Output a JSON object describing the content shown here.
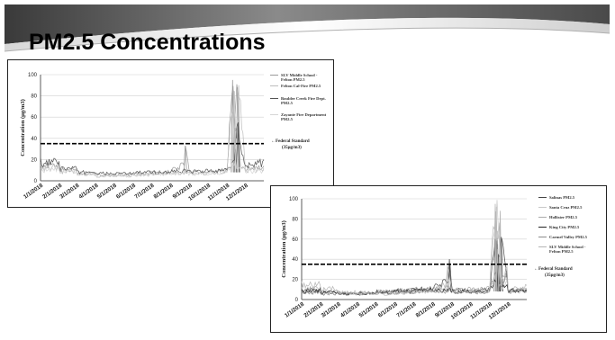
{
  "slide": {
    "title": "PM2.5 Concentrations"
  },
  "colors": {
    "accent": "#cc3b2e",
    "frame": "#222222",
    "standard_line": "#000000"
  },
  "chart_data": [
    {
      "type": "line",
      "title": "",
      "xlabel": "",
      "ylabel": "Concentration (µg/m3)",
      "ylim": [
        0,
        100
      ],
      "yticks": [
        "0",
        "20",
        "40",
        "60",
        "80",
        "100"
      ],
      "xticks": [
        "1/1/2018",
        "2/1/2018",
        "3/1/2018",
        "4/1/2018",
        "5/1/2018",
        "6/1/2018",
        "7/1/2018",
        "8/1/2018",
        "9/1/2018",
        "10/1/2018",
        "11/1/2018",
        "12/1/2018"
      ],
      "legend_position": "right",
      "standard": {
        "value": 35,
        "label": "←Federal Standard",
        "sublabel": "(35µg/m3)"
      },
      "series": [
        {
          "name": "SLV Middle School - Felton PM2.5",
          "color": "#9a9a9a",
          "x": [
            "1/1/2018",
            "2/1/2018",
            "3/1/2018",
            "4/1/2018",
            "5/1/2018",
            "6/1/2018",
            "7/1/2018",
            "8/1/2018",
            "8/25/2018",
            "9/1/2018",
            "10/1/2018",
            "11/1/2018",
            "11/10/2018",
            "11/14/2018",
            "11/18/2018",
            "11/22/2018",
            "12/1/2018",
            "12/31/2018"
          ],
          "values": [
            18,
            12,
            9,
            6,
            5,
            6,
            7,
            8,
            33,
            7,
            8,
            10,
            95,
            50,
            88,
            12,
            10,
            14
          ]
        },
        {
          "name": "Felton Cal-Fire PM2.5",
          "color": "#bdbdbd",
          "x": [
            "1/1/2018",
            "2/1/2018",
            "3/1/2018",
            "4/1/2018",
            "5/1/2018",
            "6/1/2018",
            "7/1/2018",
            "8/1/2018",
            "9/1/2018",
            "10/1/2018",
            "11/1/2018",
            "11/12/2018",
            "11/16/2018",
            "11/20/2018",
            "12/1/2018",
            "12/31/2018"
          ],
          "values": [
            15,
            10,
            8,
            5,
            4,
            5,
            6,
            7,
            6,
            7,
            9,
            85,
            30,
            90,
            9,
            12
          ]
        },
        {
          "name": "Boulder Creek Fire Dept. PM2.5",
          "color": "#555555",
          "x": [
            "1/1/2018",
            "2/1/2018",
            "3/1/2018",
            "4/1/2018",
            "5/1/2018",
            "6/1/2018",
            "7/1/2018",
            "8/1/2018",
            "9/1/2018",
            "10/1/2018",
            "11/1/2018",
            "11/15/2018",
            "11/19/2018",
            "11/25/2018",
            "12/1/2018",
            "12/31/2018"
          ],
          "values": [
            22,
            14,
            10,
            7,
            6,
            7,
            7,
            8,
            9,
            8,
            10,
            30,
            55,
            25,
            14,
            20
          ]
        },
        {
          "name": "Zayante Fire Department PM2.5",
          "color": "#d6d6d6",
          "x": [
            "1/1/2018",
            "2/1/2018",
            "3/1/2018",
            "4/1/2018",
            "5/1/2018",
            "6/1/2018",
            "7/1/2018",
            "8/1/2018",
            "9/1/2018",
            "10/1/2018",
            "11/1/2018",
            "11/16/2018",
            "12/1/2018",
            "12/31/2018"
          ],
          "values": [
            12,
            9,
            7,
            5,
            4,
            5,
            5,
            6,
            6,
            6,
            8,
            40,
            8,
            10
          ]
        }
      ]
    },
    {
      "type": "line",
      "title": "",
      "xlabel": "",
      "ylabel": "Concentration (µg/m3)",
      "ylim": [
        0,
        100
      ],
      "yticks": [
        "0",
        "20",
        "40",
        "60",
        "80",
        "100"
      ],
      "xticks": [
        "1/1/2018",
        "2/1/2018",
        "3/1/2018",
        "4/1/2018",
        "5/1/2018",
        "6/1/2018",
        "7/1/2018",
        "8/1/2018",
        "9/1/2018",
        "10/1/2018",
        "11/1/2018",
        "12/1/2018"
      ],
      "legend_position": "right",
      "standard": {
        "value": 35,
        "label": "←Federal Standard",
        "sublabel": "(35µg/m3)"
      },
      "series": [
        {
          "name": "Salinas PM2.5",
          "color": "#444444",
          "x": [
            "1/1/2018",
            "2/1/2018",
            "3/1/2018",
            "4/1/2018",
            "5/1/2018",
            "6/1/2018",
            "7/1/2018",
            "8/1/2018",
            "8/28/2018",
            "9/1/2018",
            "10/1/2018",
            "11/1/2018",
            "11/10/2018",
            "11/16/2018",
            "11/20/2018",
            "12/1/2018",
            "12/31/2018"
          ],
          "values": [
            10,
            8,
            6,
            6,
            7,
            8,
            9,
            10,
            40,
            9,
            8,
            10,
            60,
            30,
            62,
            8,
            10
          ]
        },
        {
          "name": "Santa Cruz PM2.5",
          "color": "#c8c8c8",
          "x": [
            "1/1/2018",
            "2/1/2018",
            "3/1/2018",
            "4/1/2018",
            "5/1/2018",
            "6/1/2018",
            "7/1/2018",
            "8/1/2018",
            "9/1/2018",
            "10/1/2018",
            "11/1/2018",
            "11/12/2018",
            "11/18/2018",
            "12/1/2018",
            "12/31/2018"
          ],
          "values": [
            8,
            6,
            5,
            5,
            6,
            6,
            7,
            8,
            9,
            7,
            9,
            92,
            40,
            7,
            8
          ]
        },
        {
          "name": "Hollister PM2.5",
          "color": "#aaaaaa",
          "x": [
            "1/1/2018",
            "2/1/2018",
            "3/1/2018",
            "4/1/2018",
            "5/1/2018",
            "6/1/2018",
            "7/1/2018",
            "8/1/2018",
            "9/1/2018",
            "10/1/2018",
            "11/1/2018",
            "11/14/2018",
            "12/1/2018",
            "12/31/2018"
          ],
          "values": [
            12,
            9,
            7,
            6,
            7,
            8,
            9,
            11,
            10,
            9,
            11,
            55,
            9,
            11
          ]
        },
        {
          "name": "King City PM2.5",
          "color": "#222222",
          "x": [
            "1/1/2018",
            "2/1/2018",
            "3/1/2018",
            "4/1/2018",
            "5/1/2018",
            "6/1/2018",
            "7/1/2018",
            "8/1/2018",
            "9/1/2018",
            "10/1/2018",
            "11/1/2018",
            "11/15/2018",
            "12/1/2018",
            "12/31/2018"
          ],
          "values": [
            9,
            7,
            6,
            5,
            6,
            7,
            8,
            9,
            8,
            7,
            9,
            45,
            8,
            9
          ]
        },
        {
          "name": "Carmel Valley PM2.5",
          "color": "#8c8c8c",
          "x": [
            "1/1/2018",
            "2/1/2018",
            "3/1/2018",
            "4/1/2018",
            "5/1/2018",
            "6/1/2018",
            "7/1/2018",
            "8/1/2018",
            "9/1/2018",
            "10/1/2018",
            "11/1/2018",
            "11/13/2018",
            "12/1/2018",
            "12/31/2018"
          ],
          "values": [
            7,
            6,
            5,
            5,
            6,
            6,
            7,
            8,
            7,
            6,
            8,
            68,
            7,
            8
          ]
        },
        {
          "name": "SLV Middle School - Felton PM2.5",
          "color": "#b5b5b5",
          "x": [
            "1/1/2018",
            "2/1/2018",
            "3/1/2018",
            "4/1/2018",
            "5/1/2018",
            "6/1/2018",
            "7/1/2018",
            "8/1/2018",
            "8/25/2018",
            "9/1/2018",
            "10/1/2018",
            "11/1/2018",
            "11/10/2018",
            "11/14/2018",
            "11/18/2018",
            "12/1/2018",
            "12/31/2018"
          ],
          "values": [
            18,
            12,
            9,
            6,
            5,
            6,
            7,
            8,
            33,
            7,
            8,
            10,
            95,
            50,
            88,
            10,
            14
          ]
        }
      ]
    }
  ]
}
